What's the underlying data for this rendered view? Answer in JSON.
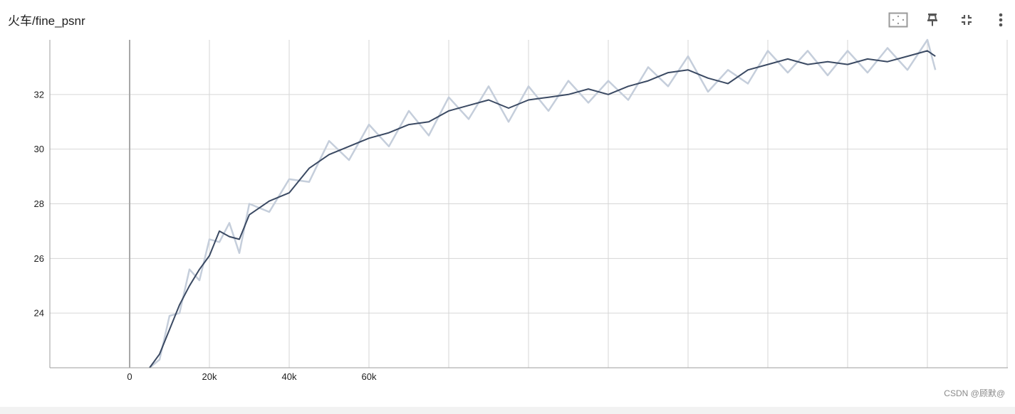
{
  "card": {
    "title": "火车/fine_psnr",
    "toolbar": {
      "fit_icon": "fit-to-data-icon",
      "pin_icon": "pin-icon",
      "collapse_icon": "collapse-icon",
      "more_icon": "more-vert-icon"
    }
  },
  "watermark": "CSDN @顾默@",
  "colors": {
    "smoothed": "#3b4a63",
    "raw": "#c5cedb",
    "grid": "#d6d6d6",
    "axis": "#9e9e9e"
  },
  "chart_data": {
    "type": "line",
    "title": "火车/fine_psnr",
    "xlabel": "",
    "ylabel": "",
    "xlim": [
      -20000,
      220000
    ],
    "ylim": [
      22,
      34
    ],
    "x_ticks": [
      0,
      20000,
      40000,
      60000
    ],
    "x_tick_labels": [
      "0",
      "20k",
      "40k",
      "60k"
    ],
    "y_ticks": [
      24,
      26,
      28,
      30,
      32
    ],
    "y_tick_labels": [
      "24",
      "26",
      "28",
      "30",
      "32"
    ],
    "grid": true,
    "legend": "none",
    "series": [
      {
        "smoothed": true,
        "x": [
          5000,
          7500,
          10000,
          12500,
          15000,
          17500,
          20000,
          22500,
          25000,
          27500,
          30000,
          35000,
          40000,
          45000,
          50000,
          55000,
          60000,
          65000,
          70000,
          75000,
          80000,
          85000,
          90000,
          95000,
          100000,
          105000,
          110000,
          115000,
          120000,
          125000,
          130000,
          135000,
          140000,
          145000,
          150000,
          155000,
          160000,
          165000,
          170000,
          175000,
          180000,
          185000,
          190000,
          195000,
          200000,
          202000
        ],
        "y": [
          22.0,
          22.5,
          23.4,
          24.3,
          25.0,
          25.6,
          26.1,
          27.0,
          26.8,
          26.7,
          27.6,
          28.1,
          28.4,
          29.3,
          29.8,
          30.1,
          30.4,
          30.6,
          30.9,
          31.0,
          31.4,
          31.6,
          31.8,
          31.5,
          31.8,
          31.9,
          32.0,
          32.2,
          32.0,
          32.3,
          32.5,
          32.8,
          32.9,
          32.6,
          32.4,
          32.9,
          33.1,
          33.3,
          33.1,
          33.2,
          33.1,
          33.3,
          33.2,
          33.4,
          33.6,
          33.4
        ]
      },
      {
        "smoothed": false,
        "x": [
          5000,
          7500,
          10000,
          12500,
          15000,
          17500,
          20000,
          22500,
          25000,
          27500,
          30000,
          35000,
          40000,
          45000,
          50000,
          55000,
          60000,
          65000,
          70000,
          75000,
          80000,
          85000,
          90000,
          95000,
          100000,
          105000,
          110000,
          115000,
          120000,
          125000,
          130000,
          135000,
          140000,
          145000,
          150000,
          155000,
          160000,
          165000,
          170000,
          175000,
          180000,
          185000,
          190000,
          195000,
          200000,
          202000
        ],
        "y": [
          22.0,
          22.3,
          23.9,
          24.0,
          25.6,
          25.2,
          26.7,
          26.6,
          27.3,
          26.2,
          28.0,
          27.7,
          28.9,
          28.8,
          30.3,
          29.6,
          30.9,
          30.1,
          31.4,
          30.5,
          31.9,
          31.1,
          32.3,
          31.0,
          32.3,
          31.4,
          32.5,
          31.7,
          32.5,
          31.8,
          33.0,
          32.3,
          33.4,
          32.1,
          32.9,
          32.4,
          33.6,
          32.8,
          33.6,
          32.7,
          33.6,
          32.8,
          33.7,
          32.9,
          34.0,
          32.9
        ]
      }
    ]
  }
}
